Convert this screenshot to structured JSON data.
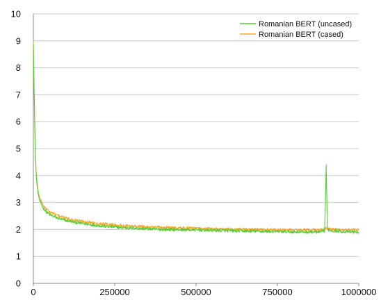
{
  "chart_data": {
    "type": "line",
    "title": "",
    "xlabel": "",
    "ylabel": "",
    "xlim": [
      0,
      1000000
    ],
    "ylim": [
      0,
      10
    ],
    "x_ticks": [
      0,
      250000,
      500000,
      750000,
      1000000
    ],
    "y_ticks": [
      0,
      1,
      2,
      3,
      4,
      5,
      6,
      7,
      8,
      9,
      10
    ],
    "x_tick_labels": [
      "0",
      "250000",
      "500000",
      "750000",
      "1000000"
    ],
    "y_tick_labels": [
      "0",
      "1",
      "2",
      "3",
      "4",
      "5",
      "6",
      "7",
      "8",
      "9",
      "10"
    ],
    "grid": true,
    "legend_position": "top-right",
    "series": [
      {
        "name": "Romanian BERT (uncased)",
        "color": "#55cc33",
        "x": [
          0,
          2000,
          4000,
          6000,
          8000,
          10000,
          15000,
          20000,
          30000,
          40000,
          50000,
          75000,
          100000,
          150000,
          200000,
          250000,
          300000,
          400000,
          500000,
          600000,
          700000,
          800000,
          880000,
          895000,
          898000,
          900000,
          902000,
          905000,
          920000,
          950000,
          1000000
        ],
        "y": [
          8.9,
          7.3,
          6.0,
          4.9,
          4.2,
          3.8,
          3.3,
          3.05,
          2.8,
          2.65,
          2.55,
          2.42,
          2.33,
          2.22,
          2.14,
          2.09,
          2.05,
          2.0,
          1.98,
          1.95,
          1.93,
          1.91,
          1.9,
          1.95,
          3.2,
          4.35,
          3.0,
          2.0,
          1.95,
          1.92,
          1.9
        ]
      },
      {
        "name": "Romanian BERT (cased)",
        "color": "#f5a623",
        "x": [
          0,
          2000,
          4000,
          6000,
          8000,
          10000,
          15000,
          20000,
          30000,
          40000,
          50000,
          75000,
          100000,
          150000,
          200000,
          250000,
          300000,
          400000,
          500000,
          600000,
          700000,
          800000,
          880000,
          895000,
          900000,
          905000,
          920000,
          950000,
          1000000
        ],
        "y": [
          9.0,
          7.5,
          6.1,
          5.0,
          4.3,
          3.9,
          3.4,
          3.15,
          2.9,
          2.75,
          2.65,
          2.52,
          2.42,
          2.3,
          2.22,
          2.17,
          2.12,
          2.07,
          2.04,
          2.01,
          1.99,
          1.98,
          1.98,
          2.0,
          2.08,
          2.02,
          2.0,
          1.99,
          1.98
        ]
      }
    ]
  }
}
